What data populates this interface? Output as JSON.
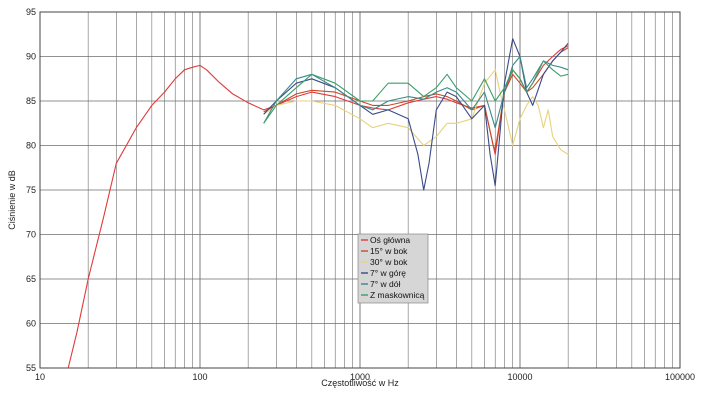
{
  "chart_data": {
    "type": "line",
    "xscale": "log",
    "xlim": [
      10,
      100000
    ],
    "ylim": [
      55,
      95
    ],
    "xticks": [
      10,
      100,
      1000,
      10000,
      100000
    ],
    "xtick_labels": [
      "10",
      "100",
      "1000",
      "10000",
      "100000"
    ],
    "yticks": [
      55,
      60,
      65,
      70,
      75,
      80,
      85,
      90,
      95
    ],
    "ytick_labels": [
      "55",
      "60",
      "65",
      "70",
      "75",
      "80",
      "85",
      "90",
      "95"
    ],
    "xlabel": "Częstotliwość w Hz",
    "ylabel": "Ciśnienie w dB",
    "grid": true,
    "legend_position": "center",
    "series": [
      {
        "name": "Oś główna",
        "color": "#e03a3a",
        "x": [
          15,
          17,
          20,
          25,
          30,
          40,
          50,
          60,
          70,
          80,
          90,
          100,
          110,
          130,
          160,
          200,
          250,
          300,
          400,
          500,
          700,
          1000,
          1200,
          1500,
          2000,
          2500,
          3000,
          3500,
          4000,
          5000,
          6000,
          6800,
          7000,
          8000,
          9000,
          10000,
          11000,
          12000,
          14000,
          16000,
          18000,
          20000
        ],
        "y": [
          55,
          59,
          65,
          72,
          78,
          82,
          84.5,
          86,
          87.5,
          88.5,
          88.8,
          89,
          88.5,
          87.2,
          85.8,
          84.8,
          84,
          84.5,
          85.5,
          86,
          85.5,
          84.5,
          84.2,
          84,
          84.8,
          85.2,
          85.5,
          85.2,
          84.8,
          84.2,
          84.5,
          80,
          79,
          86,
          88.5,
          87.5,
          86,
          87,
          89,
          90,
          90.8,
          91.2
        ]
      },
      {
        "name": "15° w bok",
        "color": "#c74a2a",
        "x": [
          250,
          300,
          400,
          500,
          700,
          1000,
          1200,
          1500,
          2000,
          2500,
          3000,
          3500,
          4000,
          5000,
          6000,
          6800,
          7000,
          8000,
          9000,
          10000,
          11000,
          12000,
          14000,
          16000,
          18000,
          20000
        ],
        "y": [
          83.8,
          84.5,
          85.8,
          86.2,
          86,
          85,
          84.5,
          84.5,
          85,
          85.5,
          85.8,
          85.5,
          85,
          84,
          84.5,
          80,
          79.5,
          86,
          88,
          87,
          86,
          86.5,
          88,
          89.5,
          90.5,
          91
        ]
      },
      {
        "name": "30° w bok",
        "color": "#e8d27a",
        "x": [
          250,
          300,
          400,
          500,
          700,
          1000,
          1200,
          1500,
          2000,
          2500,
          3000,
          3500,
          4000,
          5000,
          6000,
          7000,
          7500,
          8000,
          9000,
          10000,
          11000,
          12000,
          13000,
          14000,
          15000,
          16000,
          18000,
          20000
        ],
        "y": [
          83.5,
          84.5,
          85,
          85,
          84.5,
          83,
          82,
          82.5,
          82,
          80,
          81,
          82.5,
          82.5,
          83,
          87,
          88.5,
          86,
          84,
          80,
          83,
          84.5,
          85.5,
          84.5,
          82,
          84,
          81,
          79.5,
          79
        ]
      },
      {
        "name": "7° w górę",
        "color": "#3a4a8a",
        "x": [
          250,
          300,
          400,
          500,
          700,
          1000,
          1200,
          1500,
          2000,
          2300,
          2500,
          2700,
          3000,
          3500,
          4000,
          5000,
          6000,
          6500,
          7000,
          8000,
          9000,
          10000,
          11000,
          12000,
          14000,
          16000,
          18000,
          20000
        ],
        "y": [
          83.5,
          85,
          87,
          87.5,
          86.5,
          84.5,
          83.5,
          84,
          83,
          79,
          75,
          78,
          84,
          86,
          85.5,
          83,
          84.5,
          79,
          75.5,
          87,
          92,
          90,
          86,
          84.5,
          88,
          89.5,
          90.5,
          91.5
        ]
      },
      {
        "name": "7° w dół",
        "color": "#3a8a8a",
        "x": [
          250,
          300,
          400,
          500,
          700,
          1000,
          1200,
          1500,
          2000,
          2500,
          3000,
          3500,
          4000,
          5000,
          6000,
          7000,
          8000,
          9000,
          10000,
          11000,
          12000,
          14000,
          16000,
          18000,
          20000
        ],
        "y": [
          82.5,
          85,
          87.5,
          88,
          86.5,
          84.5,
          84,
          85,
          85.5,
          85.2,
          86,
          86.5,
          86,
          84,
          86,
          82,
          86,
          89,
          90,
          86.5,
          87.5,
          89.5,
          89,
          88.8,
          88.5
        ]
      },
      {
        "name": "Z maskownicą",
        "color": "#3aa06a",
        "x": [
          250,
          300,
          400,
          500,
          700,
          1000,
          1200,
          1500,
          2000,
          2500,
          3000,
          3500,
          4000,
          5000,
          6000,
          7000,
          8000,
          9000,
          10000,
          11000,
          12000,
          14000,
          16000,
          18000,
          20000
        ],
        "y": [
          82.5,
          84.5,
          86.5,
          88,
          87,
          85,
          85,
          87,
          87,
          85.5,
          86.5,
          88,
          86.5,
          85,
          87.5,
          85,
          86.5,
          88.5,
          87.5,
          86,
          87,
          89.5,
          88.5,
          87.8,
          88
        ]
      }
    ]
  }
}
